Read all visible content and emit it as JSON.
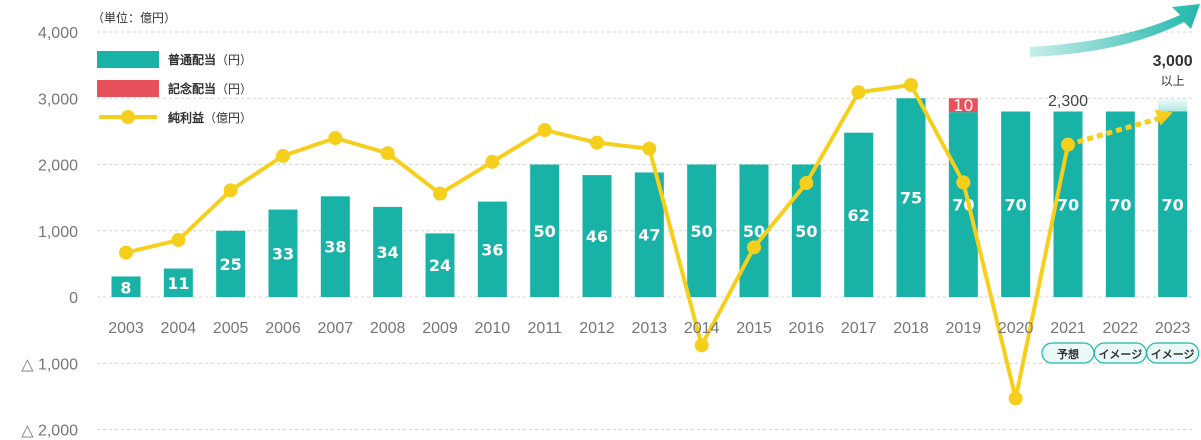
{
  "unit_label": "（単位：億円）",
  "colors": {
    "regular_dividend": "#18b2a6",
    "commemorative_dividend": "#e8505b",
    "net_income": "#f5cf1c",
    "arrow": "#20b8ab"
  },
  "chart_data": {
    "type": "bar",
    "categories": [
      "2003",
      "2004",
      "2005",
      "2006",
      "2007",
      "2008",
      "2009",
      "2010",
      "2011",
      "2012",
      "2013",
      "2014",
      "2015",
      "2016",
      "2017",
      "2018",
      "2019",
      "2020",
      "2021",
      "2022",
      "2023"
    ],
    "ylim": [
      -2000,
      4000
    ],
    "y_ticks": [
      {
        "value": 4000,
        "label": "4,000"
      },
      {
        "value": 3000,
        "label": "3,000"
      },
      {
        "value": 2000,
        "label": "2,000"
      },
      {
        "value": 1000,
        "label": "1,000"
      },
      {
        "value": 0,
        "label": "0"
      },
      {
        "value": -1000,
        "label": "△ 1,000"
      },
      {
        "value": -2000,
        "label": "△ 2,000"
      }
    ],
    "grid": true,
    "legend_position": "top-left",
    "series": [
      {
        "name": "普通配当",
        "unit": "（円）",
        "kind": "bar",
        "values": [
          310,
          430,
          1000,
          1320,
          1520,
          1360,
          960,
          1440,
          2000,
          1840,
          1880,
          2000,
          2000,
          2000,
          2480,
          3000,
          2790,
          2800,
          2800,
          2800,
          2800
        ],
        "labels": [
          "8",
          "11",
          "25",
          "33",
          "38",
          "34",
          "24",
          "36",
          "50",
          "46",
          "47",
          "50",
          "50",
          "50",
          "62",
          "75",
          "70",
          "70",
          "70",
          "70",
          "70"
        ]
      },
      {
        "name": "記念配当",
        "unit": "（円）",
        "kind": "stacked-bar",
        "values": [
          0,
          0,
          0,
          0,
          0,
          0,
          0,
          0,
          0,
          0,
          0,
          0,
          0,
          0,
          0,
          0,
          210,
          0,
          0,
          0,
          0
        ],
        "labels": [
          "",
          "",
          "",
          "",
          "",
          "",
          "",
          "",
          "",
          "",
          "",
          "",
          "",
          "",
          "",
          "",
          "10",
          "",
          "",
          "",
          ""
        ]
      },
      {
        "name": "純利益",
        "unit": "（億円）",
        "kind": "line",
        "values": [
          670,
          860,
          1610,
          2130,
          2400,
          2170,
          1560,
          2040,
          2520,
          2330,
          2240,
          -730,
          750,
          1720,
          3090,
          3200,
          1730,
          -1530,
          2300,
          null,
          null
        ],
        "projection": {
          "from": "2021",
          "to": "2023",
          "to_value": 2800
        }
      }
    ],
    "annotations": [
      {
        "text": "2,300",
        "category": "2021",
        "value": 2300
      },
      {
        "text": "3,000",
        "category": "2023",
        "value": 3000,
        "note": "以上"
      }
    ],
    "badges": [
      {
        "category": "2021",
        "text": "予想"
      },
      {
        "category": "2022",
        "text": "イメージ"
      },
      {
        "category": "2023",
        "text": "イメージ"
      }
    ]
  }
}
